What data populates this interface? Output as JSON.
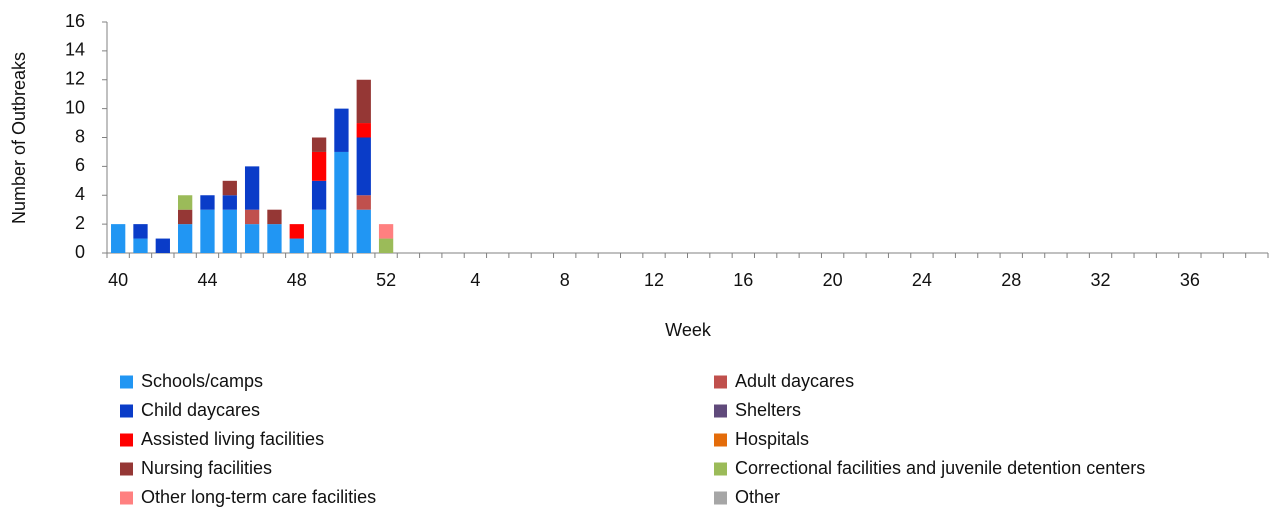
{
  "chart_data": {
    "type": "stacked_bar",
    "y_label": "Number of Outbreaks",
    "x_label": "Week",
    "categories": [
      "40",
      null,
      null,
      null,
      "44",
      null,
      null,
      null,
      "48",
      null,
      null,
      null,
      "52",
      null,
      null,
      null,
      "4",
      null,
      null,
      null,
      "8",
      null,
      null,
      null,
      "12",
      null,
      null,
      null,
      "16",
      null,
      null,
      null,
      "20",
      null,
      null,
      null,
      "24",
      null,
      null,
      null,
      "28",
      null,
      null,
      null,
      "32",
      null,
      null,
      null,
      "36",
      null,
      null,
      null
    ],
    "ylim": [
      0,
      16
    ],
    "yticks": [
      0,
      2,
      4,
      6,
      8,
      10,
      12,
      14,
      16
    ],
    "grid": false,
    "series": [
      {
        "name": "Schools/camps",
        "color": "#2196f3",
        "values": [
          2,
          1,
          0,
          2,
          3,
          3,
          2,
          2,
          1,
          3,
          7,
          3,
          0,
          null,
          null,
          null,
          null,
          null,
          null,
          null,
          null,
          null,
          null,
          null,
          null,
          null,
          null,
          null,
          null,
          null,
          null,
          null,
          null,
          null,
          null,
          null,
          null,
          null,
          null,
          null,
          null,
          null,
          null,
          null,
          null,
          null,
          null,
          null,
          null,
          null,
          null,
          null
        ]
      },
      {
        "name": "Adult daycares",
        "color": "#c0504d",
        "values": [
          0,
          0,
          0,
          0,
          0,
          0,
          1,
          0,
          0,
          0,
          0,
          1,
          0,
          null,
          null,
          null,
          null,
          null,
          null,
          null,
          null,
          null,
          null,
          null,
          null,
          null,
          null,
          null,
          null,
          null,
          null,
          null,
          null,
          null,
          null,
          null,
          null,
          null,
          null,
          null,
          null,
          null,
          null,
          null,
          null,
          null,
          null,
          null,
          null,
          null,
          null,
          null
        ]
      },
      {
        "name": "Child daycares",
        "color": "#0a3cc8",
        "values": [
          0,
          1,
          1,
          0,
          1,
          1,
          3,
          0,
          0,
          2,
          3,
          4,
          0,
          null,
          null,
          null,
          null,
          null,
          null,
          null,
          null,
          null,
          null,
          null,
          null,
          null,
          null,
          null,
          null,
          null,
          null,
          null,
          null,
          null,
          null,
          null,
          null,
          null,
          null,
          null,
          null,
          null,
          null,
          null,
          null,
          null,
          null,
          null,
          null,
          null,
          null,
          null
        ]
      },
      {
        "name": "Assisted living facilities",
        "color": "#ff0000",
        "values": [
          0,
          0,
          0,
          0,
          0,
          0,
          0,
          0,
          1,
          2,
          0,
          1,
          0,
          null,
          null,
          null,
          null,
          null,
          null,
          null,
          null,
          null,
          null,
          null,
          null,
          null,
          null,
          null,
          null,
          null,
          null,
          null,
          null,
          null,
          null,
          null,
          null,
          null,
          null,
          null,
          null,
          null,
          null,
          null,
          null,
          null,
          null,
          null,
          null,
          null,
          null,
          null
        ]
      },
      {
        "name": "Nursing facilities",
        "color": "#953735",
        "values": [
          0,
          0,
          0,
          1,
          0,
          1,
          0,
          1,
          0,
          1,
          0,
          3,
          0,
          null,
          null,
          null,
          null,
          null,
          null,
          null,
          null,
          null,
          null,
          null,
          null,
          null,
          null,
          null,
          null,
          null,
          null,
          null,
          null,
          null,
          null,
          null,
          null,
          null,
          null,
          null,
          null,
          null,
          null,
          null,
          null,
          null,
          null,
          null,
          null,
          null,
          null,
          null
        ]
      },
      {
        "name": "Correctional facilities and juvenile detention centers",
        "color": "#9bbb59",
        "values": [
          0,
          0,
          0,
          1,
          0,
          0,
          0,
          0,
          0,
          0,
          0,
          0,
          1,
          null,
          null,
          null,
          null,
          null,
          null,
          null,
          null,
          null,
          null,
          null,
          null,
          null,
          null,
          null,
          null,
          null,
          null,
          null,
          null,
          null,
          null,
          null,
          null,
          null,
          null,
          null,
          null,
          null,
          null,
          null,
          null,
          null,
          null,
          null,
          null,
          null,
          null,
          null
        ]
      },
      {
        "name": "Other long-term care facilities",
        "color": "#ff8080",
        "values": [
          0,
          0,
          0,
          0,
          0,
          0,
          0,
          0,
          0,
          0,
          0,
          0,
          1,
          null,
          null,
          null,
          null,
          null,
          null,
          null,
          null,
          null,
          null,
          null,
          null,
          null,
          null,
          null,
          null,
          null,
          null,
          null,
          null,
          null,
          null,
          null,
          null,
          null,
          null,
          null,
          null,
          null,
          null,
          null,
          null,
          null,
          null,
          null,
          null,
          null,
          null,
          null
        ]
      },
      {
        "name": "Shelters",
        "color": "#604a7b",
        "values": [
          0,
          0,
          0,
          0,
          0,
          0,
          0,
          0,
          0,
          0,
          0,
          0,
          0,
          null,
          null,
          null,
          null,
          null,
          null,
          null,
          null,
          null,
          null,
          null,
          null,
          null,
          null,
          null,
          null,
          null,
          null,
          null,
          null,
          null,
          null,
          null,
          null,
          null,
          null,
          null,
          null,
          null,
          null,
          null,
          null,
          null,
          null,
          null,
          null,
          null,
          null,
          null
        ]
      },
      {
        "name": "Hospitals",
        "color": "#e46c0a",
        "values": [
          0,
          0,
          0,
          0,
          0,
          0,
          0,
          0,
          0,
          0,
          0,
          0,
          0,
          null,
          null,
          null,
          null,
          null,
          null,
          null,
          null,
          null,
          null,
          null,
          null,
          null,
          null,
          null,
          null,
          null,
          null,
          null,
          null,
          null,
          null,
          null,
          null,
          null,
          null,
          null,
          null,
          null,
          null,
          null,
          null,
          null,
          null,
          null,
          null,
          null,
          null,
          null
        ]
      },
      {
        "name": "Other",
        "color": "#a6a6a6",
        "values": [
          0,
          0,
          0,
          0,
          0,
          0,
          0,
          0,
          0,
          0,
          0,
          0,
          0,
          null,
          null,
          null,
          null,
          null,
          null,
          null,
          null,
          null,
          null,
          null,
          null,
          null,
          null,
          null,
          null,
          null,
          null,
          null,
          null,
          null,
          null,
          null,
          null,
          null,
          null,
          null,
          null,
          null,
          null,
          null,
          null,
          null,
          null,
          null,
          null,
          null,
          null,
          null
        ]
      }
    ]
  }
}
